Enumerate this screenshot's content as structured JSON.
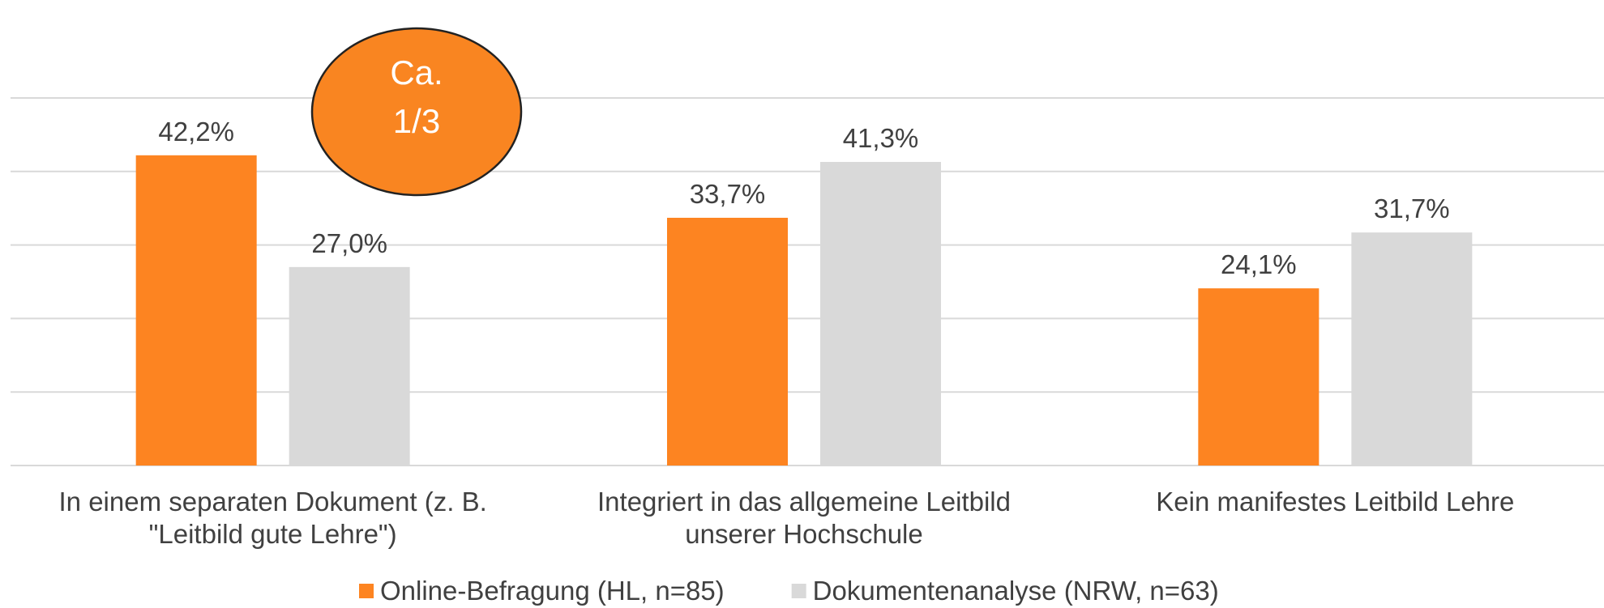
{
  "chart_data": {
    "type": "bar",
    "categories": [
      "In einem separaten Dokument (z. B. \"Leitbild gute Lehre\")",
      "Integriert in das allgemeine Leitbild unserer Hochschule",
      "Kein manifestes Leitbild Lehre"
    ],
    "series": [
      {
        "name": "Online-Befragung (HL, n=85)",
        "color": "#fd8421",
        "values": [
          42.2,
          33.7,
          24.1
        ],
        "value_labels": [
          "42,2%",
          "33,7%",
          "24,1%"
        ]
      },
      {
        "name": "Dokumentenanalyse (NRW, n=63)",
        "color": "#d9d9d9",
        "values": [
          27.0,
          41.3,
          31.7
        ],
        "value_labels": [
          "27,0%",
          "41,3%",
          "31,7%"
        ]
      }
    ],
    "ylim": [
      0,
      50
    ],
    "yticks": [
      0,
      10,
      20,
      30,
      40,
      50
    ],
    "grid": true,
    "annotation": [
      "Ca.",
      "1/3"
    ],
    "annotation_color": "#f98521",
    "legend": "bottom"
  }
}
